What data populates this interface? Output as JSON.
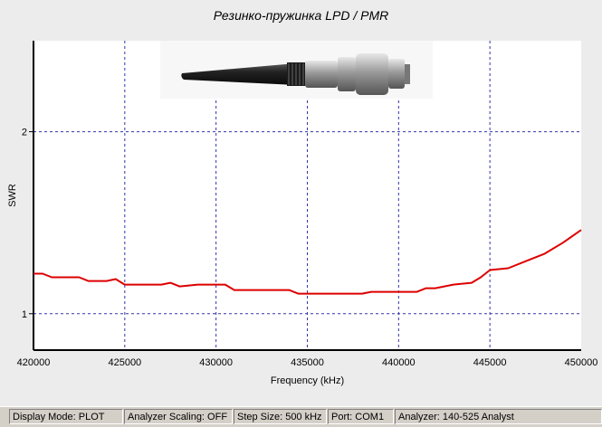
{
  "chart_data": {
    "type": "line",
    "title": "Резинко-пружинка LPD / PMR",
    "xlabel": "Frequency (kHz)",
    "ylabel": "SWR",
    "xlim": [
      420000,
      450000
    ],
    "ylim": [
      0.8,
      2.5
    ],
    "x_ticks": [
      420000,
      425000,
      430000,
      435000,
      440000,
      445000,
      450000
    ],
    "y_ticks": [
      1,
      2
    ],
    "grid": true,
    "series": [
      {
        "color": "#dd0000",
        "x": [
          420000,
          420500,
          421000,
          422000,
          422500,
          423000,
          424000,
          424500,
          425000,
          426000,
          427000,
          427500,
          428000,
          429000,
          430000,
          430500,
          431000,
          432000,
          433000,
          434000,
          434500,
          436000,
          437000,
          438000,
          438500,
          439000,
          440000,
          441000,
          441500,
          442000,
          443000,
          444000,
          444500,
          445000,
          446000,
          447000,
          448000,
          449000,
          450000
        ],
        "y": [
          1.22,
          1.22,
          1.2,
          1.2,
          1.2,
          1.18,
          1.18,
          1.19,
          1.16,
          1.16,
          1.16,
          1.17,
          1.15,
          1.16,
          1.16,
          1.16,
          1.13,
          1.13,
          1.13,
          1.13,
          1.11,
          1.11,
          1.11,
          1.11,
          1.12,
          1.12,
          1.12,
          1.12,
          1.14,
          1.14,
          1.16,
          1.17,
          1.2,
          1.24,
          1.25,
          1.29,
          1.33,
          1.39,
          1.46
        ]
      }
    ]
  },
  "statusbar": {
    "display_mode": "Display Mode: PLOT",
    "analyzer_scaling": "Analyzer Scaling: OFF",
    "step_size": "Step Size: 500 kHz",
    "port": "Port: COM1",
    "analyzer": "Analyzer: 140-525 Analyst"
  },
  "colors": {
    "plot_background": "#ffffff",
    "grid": "#3333aa",
    "series": "#dd0000",
    "statusbar": "#d4d0c8"
  },
  "icons": {
    "photo": "bnc-antenna-photo"
  }
}
